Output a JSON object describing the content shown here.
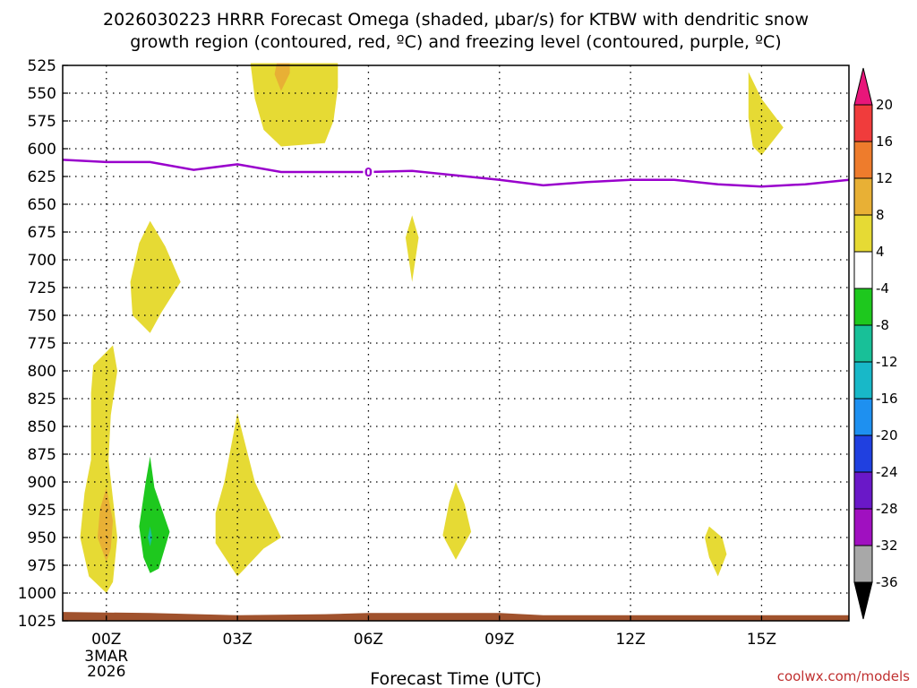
{
  "chart_data": {
    "type": "time-height contour",
    "title_lines": [
      "2026030223 HRRR Forecast Omega (shaded, µbar/s) for KTBW with dendritic snow",
      "growth region (contoured, red, ºC) and freezing level (contoured, purple, ºC)"
    ],
    "xlabel": "Forecast Time (UTC)",
    "credit": "coolwx.com/models",
    "x_range_hours": [
      -1,
      17
    ],
    "x_ticks": [
      {
        "hour": 0,
        "label": "00Z",
        "sub1": "3MAR",
        "sub2": "2026"
      },
      {
        "hour": 3,
        "label": "03Z"
      },
      {
        "hour": 6,
        "label": "06Z"
      },
      {
        "hour": 9,
        "label": "09Z"
      },
      {
        "hour": 12,
        "label": "12Z"
      },
      {
        "hour": 15,
        "label": "15Z"
      }
    ],
    "y_range_mb": [
      525,
      1025
    ],
    "y_ticks": [
      525,
      550,
      575,
      600,
      625,
      650,
      675,
      700,
      725,
      750,
      775,
      800,
      825,
      850,
      875,
      900,
      925,
      950,
      975,
      1000,
      1025
    ],
    "colorbar": {
      "labels": [
        "20",
        "16",
        "12",
        "8",
        "4",
        "-4",
        "-8",
        "-12",
        "-16",
        "-20",
        "-24",
        "-28",
        "-32",
        "-36"
      ],
      "levels": [
        {
          "range": ">20",
          "color": "#e8167a"
        },
        {
          "range": "16 to 20",
          "color": "#f03c3c"
        },
        {
          "range": "12 to 16",
          "color": "#ee7c2c"
        },
        {
          "range": "8 to 12",
          "color": "#e8b035"
        },
        {
          "range": "4 to 8",
          "color": "#e6da34"
        },
        {
          "range": "-4 to 4",
          "color": "#ffffff"
        },
        {
          "range": "-8 to -4",
          "color": "#1ec81e"
        },
        {
          "range": "-12 to -8",
          "color": "#18c098"
        },
        {
          "range": "-16 to -12",
          "color": "#18b8c8"
        },
        {
          "range": "-20 to -16",
          "color": "#1e90f0"
        },
        {
          "range": "-24 to -20",
          "color": "#2040e0"
        },
        {
          "range": "-28 to -24",
          "color": "#6a18c8"
        },
        {
          "range": "-32 to -28",
          "color": "#a010c0"
        },
        {
          "range": "-36 to -32",
          "color": "#a8a8a8"
        },
        {
          "range": "<-36",
          "color": "#000000"
        }
      ]
    },
    "freezing_level": {
      "label": "0",
      "color": "#9900cc",
      "points": [
        [
          -1,
          610
        ],
        [
          0,
          612
        ],
        [
          1,
          612
        ],
        [
          2,
          619
        ],
        [
          3,
          614
        ],
        [
          4,
          621
        ],
        [
          5,
          621
        ],
        [
          6,
          621
        ],
        [
          7,
          620
        ],
        [
          8,
          624
        ],
        [
          9,
          628
        ],
        [
          10,
          633
        ],
        [
          11,
          630
        ],
        [
          12,
          628
        ],
        [
          13,
          628
        ],
        [
          14,
          632
        ],
        [
          15,
          634
        ],
        [
          16,
          632
        ],
        [
          17,
          628
        ]
      ]
    },
    "omega_regions": [
      {
        "level": "4 to 8",
        "polygon": [
          [
            3.3,
            523
          ],
          [
            5.3,
            523
          ],
          [
            5.3,
            545
          ],
          [
            5.2,
            575
          ],
          [
            5.0,
            595
          ],
          [
            4.0,
            598
          ],
          [
            3.6,
            583
          ],
          [
            3.4,
            555
          ]
        ]
      },
      {
        "level": "8 to 12",
        "polygon": [
          [
            3.9,
            523
          ],
          [
            4.2,
            523
          ],
          [
            4.2,
            532
          ],
          [
            4.0,
            548
          ],
          [
            3.85,
            533
          ]
        ]
      },
      {
        "level": "4 to 8",
        "polygon": [
          [
            14.7,
            531
          ],
          [
            15.0,
            555
          ],
          [
            15.5,
            581
          ],
          [
            15.0,
            606
          ],
          [
            14.8,
            598
          ],
          [
            14.7,
            572
          ],
          [
            14.7,
            555
          ]
        ]
      },
      {
        "level": "4 to 8",
        "polygon": [
          [
            1.0,
            665
          ],
          [
            1.35,
            688
          ],
          [
            1.7,
            720
          ],
          [
            1.25,
            748
          ],
          [
            1.0,
            766
          ],
          [
            0.6,
            750
          ],
          [
            0.55,
            720
          ],
          [
            0.75,
            685
          ]
        ]
      },
      {
        "level": "4 to 8",
        "polygon": [
          [
            7.0,
            660
          ],
          [
            7.15,
            680
          ],
          [
            7.0,
            720
          ],
          [
            6.85,
            680
          ]
        ]
      },
      {
        "level": "4 to 8",
        "polygon": [
          [
            0.15,
            777
          ],
          [
            0.25,
            800
          ],
          [
            0.1,
            840
          ],
          [
            0.05,
            880
          ],
          [
            0.25,
            950
          ],
          [
            0.15,
            990
          ],
          [
            0.0,
            1000
          ],
          [
            -0.4,
            985
          ],
          [
            -0.6,
            950
          ],
          [
            -0.5,
            910
          ],
          [
            -0.35,
            880
          ],
          [
            -0.35,
            820
          ],
          [
            -0.3,
            795
          ]
        ]
      },
      {
        "level": "8 to 12",
        "polygon": [
          [
            0.0,
            905
          ],
          [
            0.15,
            935
          ],
          [
            0.1,
            960
          ],
          [
            0.0,
            972
          ],
          [
            -0.2,
            950
          ],
          [
            -0.15,
            925
          ]
        ]
      },
      {
        "level": "4 to 8",
        "polygon": [
          [
            3.0,
            838
          ],
          [
            3.4,
            900
          ],
          [
            4.0,
            950
          ],
          [
            3.6,
            960
          ],
          [
            3.0,
            985
          ],
          [
            2.5,
            955
          ],
          [
            2.5,
            928
          ],
          [
            2.7,
            900
          ]
        ]
      },
      {
        "level": "4 to 8",
        "polygon": [
          [
            8.0,
            900
          ],
          [
            8.2,
            920
          ],
          [
            8.35,
            945
          ],
          [
            8.0,
            970
          ],
          [
            7.7,
            948
          ],
          [
            7.85,
            918
          ]
        ]
      },
      {
        "level": "4 to 8",
        "polygon": [
          [
            13.8,
            940
          ],
          [
            14.1,
            950
          ],
          [
            14.2,
            965
          ],
          [
            14.0,
            985
          ],
          [
            13.8,
            968
          ],
          [
            13.7,
            950
          ]
        ]
      },
      {
        "level": "-8 to -4",
        "polygon": [
          [
            1.0,
            877
          ],
          [
            1.1,
            905
          ],
          [
            1.45,
            945
          ],
          [
            1.2,
            978
          ],
          [
            1.0,
            982
          ],
          [
            0.85,
            968
          ],
          [
            0.75,
            940
          ],
          [
            0.9,
            900
          ]
        ]
      },
      {
        "level": "-12 to -8",
        "polygon": [
          [
            1.0,
            940
          ],
          [
            1.05,
            950
          ],
          [
            1.0,
            958
          ],
          [
            0.95,
            950
          ]
        ]
      }
    ],
    "surface_terrain_color": "#a0522d"
  }
}
